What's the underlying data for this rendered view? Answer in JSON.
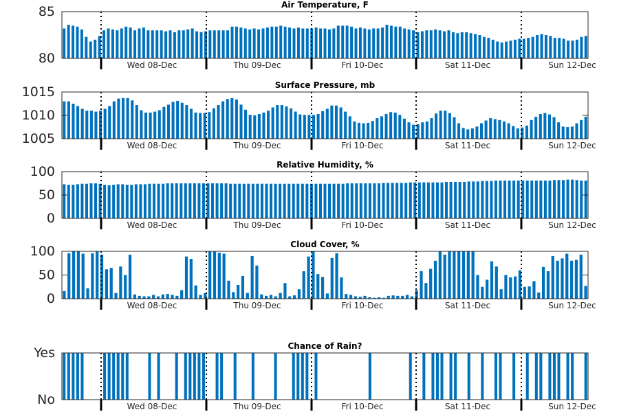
{
  "colors": {
    "bar": "#0072BD",
    "axis": "#262626",
    "divider": "#000000"
  },
  "chart_data": [
    {
      "type": "bar",
      "title": "Air Temperature, F",
      "ylim": [
        80,
        85
      ],
      "yticks": [
        80,
        85
      ],
      "ytick_labels": [
        "80",
        "85"
      ],
      "xtick_labels": [
        "Wed 08-Dec",
        "Thu 09-Dec",
        "Fri 10-Dec",
        "Sat 11-Dec",
        "Sun 12-Dec"
      ],
      "values": [
        83.2,
        83.6,
        83.5,
        83.4,
        83.1,
        82.3,
        81.8,
        82.0,
        82.4,
        83.0,
        83.2,
        83.1,
        83.0,
        83.2,
        83.4,
        83.3,
        83.0,
        83.2,
        83.3,
        83.0,
        83.0,
        83.0,
        83.0,
        82.9,
        83.0,
        82.8,
        83.0,
        83.0,
        83.1,
        83.2,
        82.9,
        82.8,
        82.9,
        83.0,
        83.0,
        83.0,
        83.0,
        83.0,
        83.4,
        83.4,
        83.3,
        83.2,
        83.1,
        83.2,
        83.1,
        83.2,
        83.3,
        83.4,
        83.4,
        83.5,
        83.4,
        83.3,
        83.2,
        83.3,
        83.2,
        83.2,
        83.2,
        83.3,
        83.2,
        83.2,
        83.1,
        83.2,
        83.5,
        83.5,
        83.5,
        83.4,
        83.2,
        83.3,
        83.2,
        83.1,
        83.2,
        83.2,
        83.3,
        83.6,
        83.5,
        83.4,
        83.4,
        83.2,
        83.1,
        83.0,
        82.8,
        82.9,
        83.0,
        83.0,
        83.1,
        83.0,
        82.9,
        83.0,
        82.8,
        82.7,
        82.8,
        82.8,
        82.7,
        82.6,
        82.5,
        82.3,
        82.2,
        82.0,
        81.8,
        81.7,
        81.8,
        81.9,
        82.0,
        82.1,
        82.1,
        82.2,
        82.3,
        82.5,
        82.6,
        82.5,
        82.4,
        82.2,
        82.2,
        82.1,
        81.9,
        81.9,
        82.0,
        82.3,
        82.4
      ]
    },
    {
      "type": "bar",
      "title": "Surface Pressure, mb",
      "ylim": [
        1005,
        1015
      ],
      "yticks": [
        1005,
        1010,
        1015
      ],
      "ytick_labels": [
        "1005",
        "1010",
        "1015"
      ],
      "xtick_labels": [
        "Wed 08-Dec",
        "Thu 09-Dec",
        "Fri 10-Dec",
        "Sat 11-Dec",
        "Sun 12-Dec"
      ],
      "values": [
        1013.0,
        1013.0,
        1012.5,
        1012.0,
        1011.4,
        1011.0,
        1011.0,
        1010.8,
        1011.0,
        1011.4,
        1012.0,
        1013.0,
        1013.6,
        1013.7,
        1013.7,
        1013.2,
        1012.2,
        1011.1,
        1010.6,
        1010.6,
        1010.8,
        1011.1,
        1011.8,
        1012.3,
        1012.9,
        1013.1,
        1012.7,
        1012.2,
        1011.4,
        1010.6,
        1010.5,
        1010.5,
        1010.7,
        1011.5,
        1012.2,
        1013.0,
        1013.5,
        1013.7,
        1013.4,
        1012.3,
        1011.2,
        1010.1,
        1010.0,
        1010.3,
        1010.6,
        1011.0,
        1011.7,
        1012.2,
        1012.2,
        1011.9,
        1011.5,
        1010.8,
        1010.2,
        1010.1,
        1010.1,
        1010.1,
        1010.3,
        1010.9,
        1011.4,
        1012.1,
        1012.1,
        1011.7,
        1010.8,
        1009.8,
        1008.7,
        1008.4,
        1008.3,
        1008.4,
        1008.8,
        1009.4,
        1009.8,
        1010.3,
        1010.7,
        1010.6,
        1010.1,
        1009.3,
        1008.5,
        1008.0,
        1008.1,
        1008.5,
        1008.7,
        1009.4,
        1010.4,
        1011.0,
        1011.0,
        1010.5,
        1009.6,
        1008.3,
        1007.3,
        1007.0,
        1007.2,
        1007.6,
        1008.3,
        1008.9,
        1009.4,
        1009.2,
        1009.0,
        1008.7,
        1008.3,
        1007.7,
        1007.2,
        1007.4,
        1007.8,
        1009.0,
        1009.7,
        1010.3,
        1010.5,
        1010.2,
        1009.6,
        1008.5,
        1007.6,
        1007.5,
        1007.6,
        1008.3,
        1009.0,
        1009.7
      ]
    },
    {
      "type": "bar",
      "title": "Relative Humidity, %",
      "ylim": [
        0,
        100
      ],
      "yticks": [
        0,
        50,
        100
      ],
      "ytick_labels": [
        "0",
        "50",
        "100"
      ],
      "xtick_labels": [
        "Wed 08-Dec",
        "Thu 09-Dec",
        "Fri 10-Dec",
        "Sat 11-Dec",
        "Sun 12-Dec"
      ],
      "values": [
        73,
        72,
        72,
        73,
        74,
        74,
        75,
        75,
        74,
        72,
        71,
        72,
        73,
        73,
        72,
        72,
        73,
        73,
        73,
        74,
        74,
        74,
        74,
        75,
        75,
        75,
        75,
        75,
        75,
        75,
        75,
        75,
        75,
        75,
        75,
        75,
        75,
        74,
        74,
        74,
        74,
        74,
        74,
        74,
        74,
        74,
        74,
        74,
        74,
        74,
        74,
        74,
        74,
        74,
        74,
        74,
        74,
        74,
        74,
        74,
        74,
        74,
        74,
        75,
        75,
        75,
        75,
        75,
        75,
        75,
        75,
        76,
        76,
        76,
        76,
        76,
        76,
        77,
        77,
        77,
        77,
        77,
        77,
        77,
        77,
        78,
        78,
        78,
        78,
        78,
        79,
        79,
        79,
        80,
        80,
        80,
        81,
        81,
        81,
        81,
        81,
        81,
        81,
        81,
        81,
        81,
        81,
        81,
        81,
        82,
        82,
        82,
        83,
        83,
        82,
        81,
        81
      ]
    },
    {
      "type": "bar",
      "title": "Cloud Cover, %",
      "ylim": [
        0,
        100
      ],
      "yticks": [
        0,
        50,
        100
      ],
      "ytick_labels": [
        "0",
        "50",
        "100"
      ],
      "xtick_labels": [
        "Wed 08-Dec",
        "Thu 09-Dec",
        "Fri 10-Dec",
        "Sat 11-Dec",
        "Sun 12-Dec"
      ],
      "values": [
        16,
        96,
        100,
        100,
        95,
        22,
        96,
        100,
        93,
        62,
        65,
        12,
        68,
        50,
        93,
        9,
        6,
        5,
        5,
        8,
        5,
        9,
        10,
        8,
        6,
        18,
        89,
        84,
        28,
        8,
        12,
        100,
        100,
        97,
        95,
        38,
        14,
        29,
        48,
        12,
        90,
        70,
        9,
        6,
        8,
        5,
        12,
        33,
        5,
        7,
        20,
        58,
        89,
        100,
        52,
        46,
        11,
        86,
        96,
        45,
        10,
        8,
        5,
        4,
        6,
        3,
        2,
        3,
        2,
        6,
        7,
        6,
        6,
        8,
        5,
        18,
        58,
        33,
        63,
        80,
        100,
        93,
        100,
        100,
        100,
        100,
        100,
        100,
        50,
        25,
        40,
        79,
        68,
        20,
        50,
        45,
        47,
        60,
        25,
        26,
        37,
        13,
        67,
        58,
        90,
        80,
        85,
        95,
        80,
        82,
        93,
        27
      ]
    },
    {
      "type": "bar",
      "title": "Chance of Rain?",
      "ylim": [
        0,
        1
      ],
      "yticks": [
        0,
        1
      ],
      "ytick_labels": [
        "No",
        "Yes"
      ],
      "xtick_labels": [
        "Wed 08-Dec",
        "Thu 09-Dec",
        "Fri 10-Dec",
        "Sat 11-Dec",
        "Sun 12-Dec"
      ],
      "values": [
        1,
        1,
        1,
        1,
        1,
        0,
        0,
        0,
        0,
        1,
        1,
        1,
        1,
        1,
        1,
        0,
        0,
        0,
        0,
        1,
        0,
        1,
        0,
        0,
        0,
        1,
        0,
        1,
        1,
        1,
        1,
        1,
        0,
        0,
        1,
        1,
        0,
        0,
        1,
        0,
        0,
        0,
        1,
        0,
        0,
        0,
        0,
        1,
        0,
        0,
        0,
        1,
        1,
        1,
        1,
        0,
        1,
        0,
        0,
        0,
        0,
        0,
        0,
        0,
        0,
        0,
        0,
        0,
        1,
        0,
        0,
        0,
        0,
        0,
        0,
        0,
        0,
        1,
        0,
        0,
        1,
        0,
        1,
        1,
        1,
        0,
        1,
        1,
        0,
        0,
        1,
        0,
        0,
        1,
        0,
        0,
        1,
        1,
        0,
        0,
        1,
        0,
        0,
        1,
        0,
        1,
        1,
        0,
        1,
        1,
        1,
        0,
        1,
        1,
        0,
        0,
        1
      ]
    }
  ]
}
